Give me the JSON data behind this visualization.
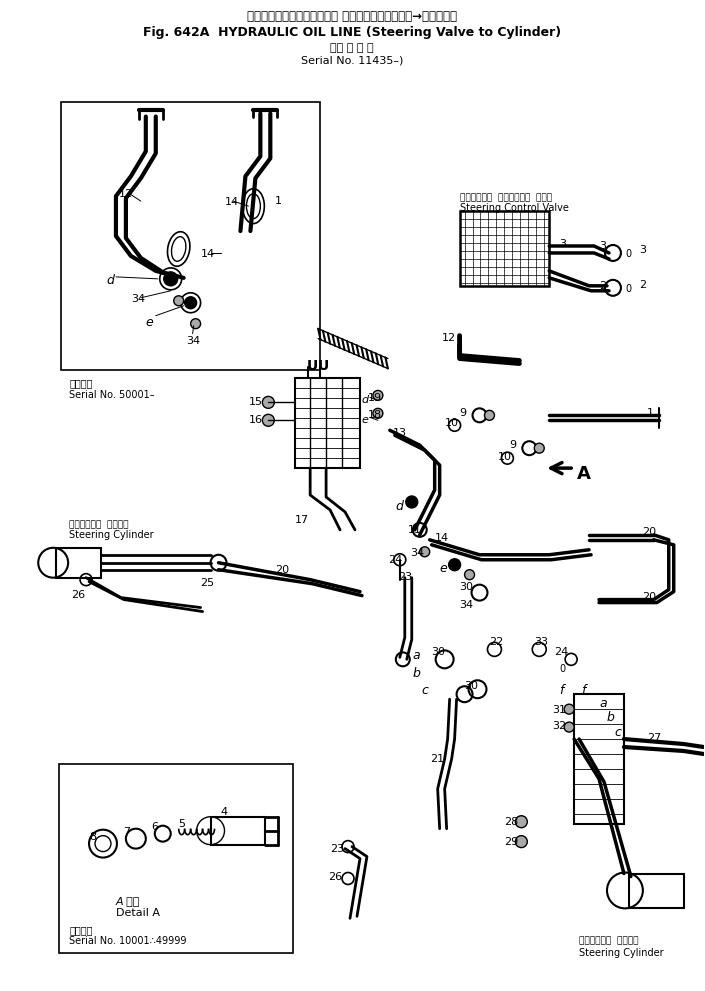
{
  "title_jp": "ハイドロリックオイルライン （ステアリングバルブ→シリンダ）",
  "title_en": "Fig. 642A  HYDRAULIC OIL LINE (Steering Valve to Cylinder)",
  "subtitle_jp": "（適 用 号 機",
  "subtitle_en": "Serial No. 11435–)",
  "serial50001_jp": "適用号機",
  "serial50001_en": "Serial No. 50001–",
  "valve_jp": "ステアリング  コントロール  バルブ",
  "valve_en": "Steering Control Valve",
  "cyl_left_jp": "ステアリング  シリンダ",
  "cyl_left_en": "Steering Cylinder",
  "detail_jp": "A 詳細",
  "detail_en": "Detail A",
  "serial10001_jp": "適用号機",
  "serial10001_en": "Serial No. 10001∴49999",
  "cyl_right_jp": "ステアリング  シリンダ",
  "cyl_right_en": "Steering Cylinder",
  "bg": "#ffffff",
  "lc": "#000000"
}
